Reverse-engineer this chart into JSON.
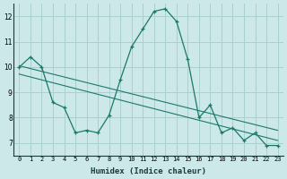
{
  "x": [
    0,
    1,
    2,
    3,
    4,
    5,
    6,
    7,
    8,
    9,
    10,
    11,
    12,
    13,
    14,
    15,
    16,
    17,
    18,
    19,
    20,
    21,
    22,
    23
  ],
  "line_main_y": [
    10.0,
    10.4,
    10.0,
    8.6,
    8.4,
    7.4,
    7.5,
    7.4,
    8.1,
    9.5,
    10.8,
    11.5,
    12.2,
    12.3,
    11.8,
    10.3,
    8.0,
    8.5,
    7.4,
    7.6,
    7.1,
    7.4,
    6.9,
    6.9
  ],
  "trend1_x": [
    0,
    23
  ],
  "trend1_y": [
    10.05,
    7.5
  ],
  "trend2_x": [
    0,
    23
  ],
  "trend2_y": [
    9.72,
    7.1
  ],
  "background_color": "#cce8e8",
  "grid_color": "#aad0d0",
  "line_color": "#1a7a6a",
  "xlim": [
    -0.5,
    23.5
  ],
  "ylim": [
    6.5,
    12.5
  ],
  "yticks": [
    7,
    8,
    9,
    10,
    11,
    12
  ],
  "xticks": [
    0,
    1,
    2,
    3,
    4,
    5,
    6,
    7,
    8,
    9,
    10,
    11,
    12,
    13,
    14,
    15,
    16,
    17,
    18,
    19,
    20,
    21,
    22,
    23
  ],
  "xlabel": "Humidex (Indice chaleur)",
  "xlabel_fontsize": 6.5,
  "xlabel_fontweight": "bold",
  "tick_fontsize": 5.0,
  "ytick_fontsize": 5.5
}
